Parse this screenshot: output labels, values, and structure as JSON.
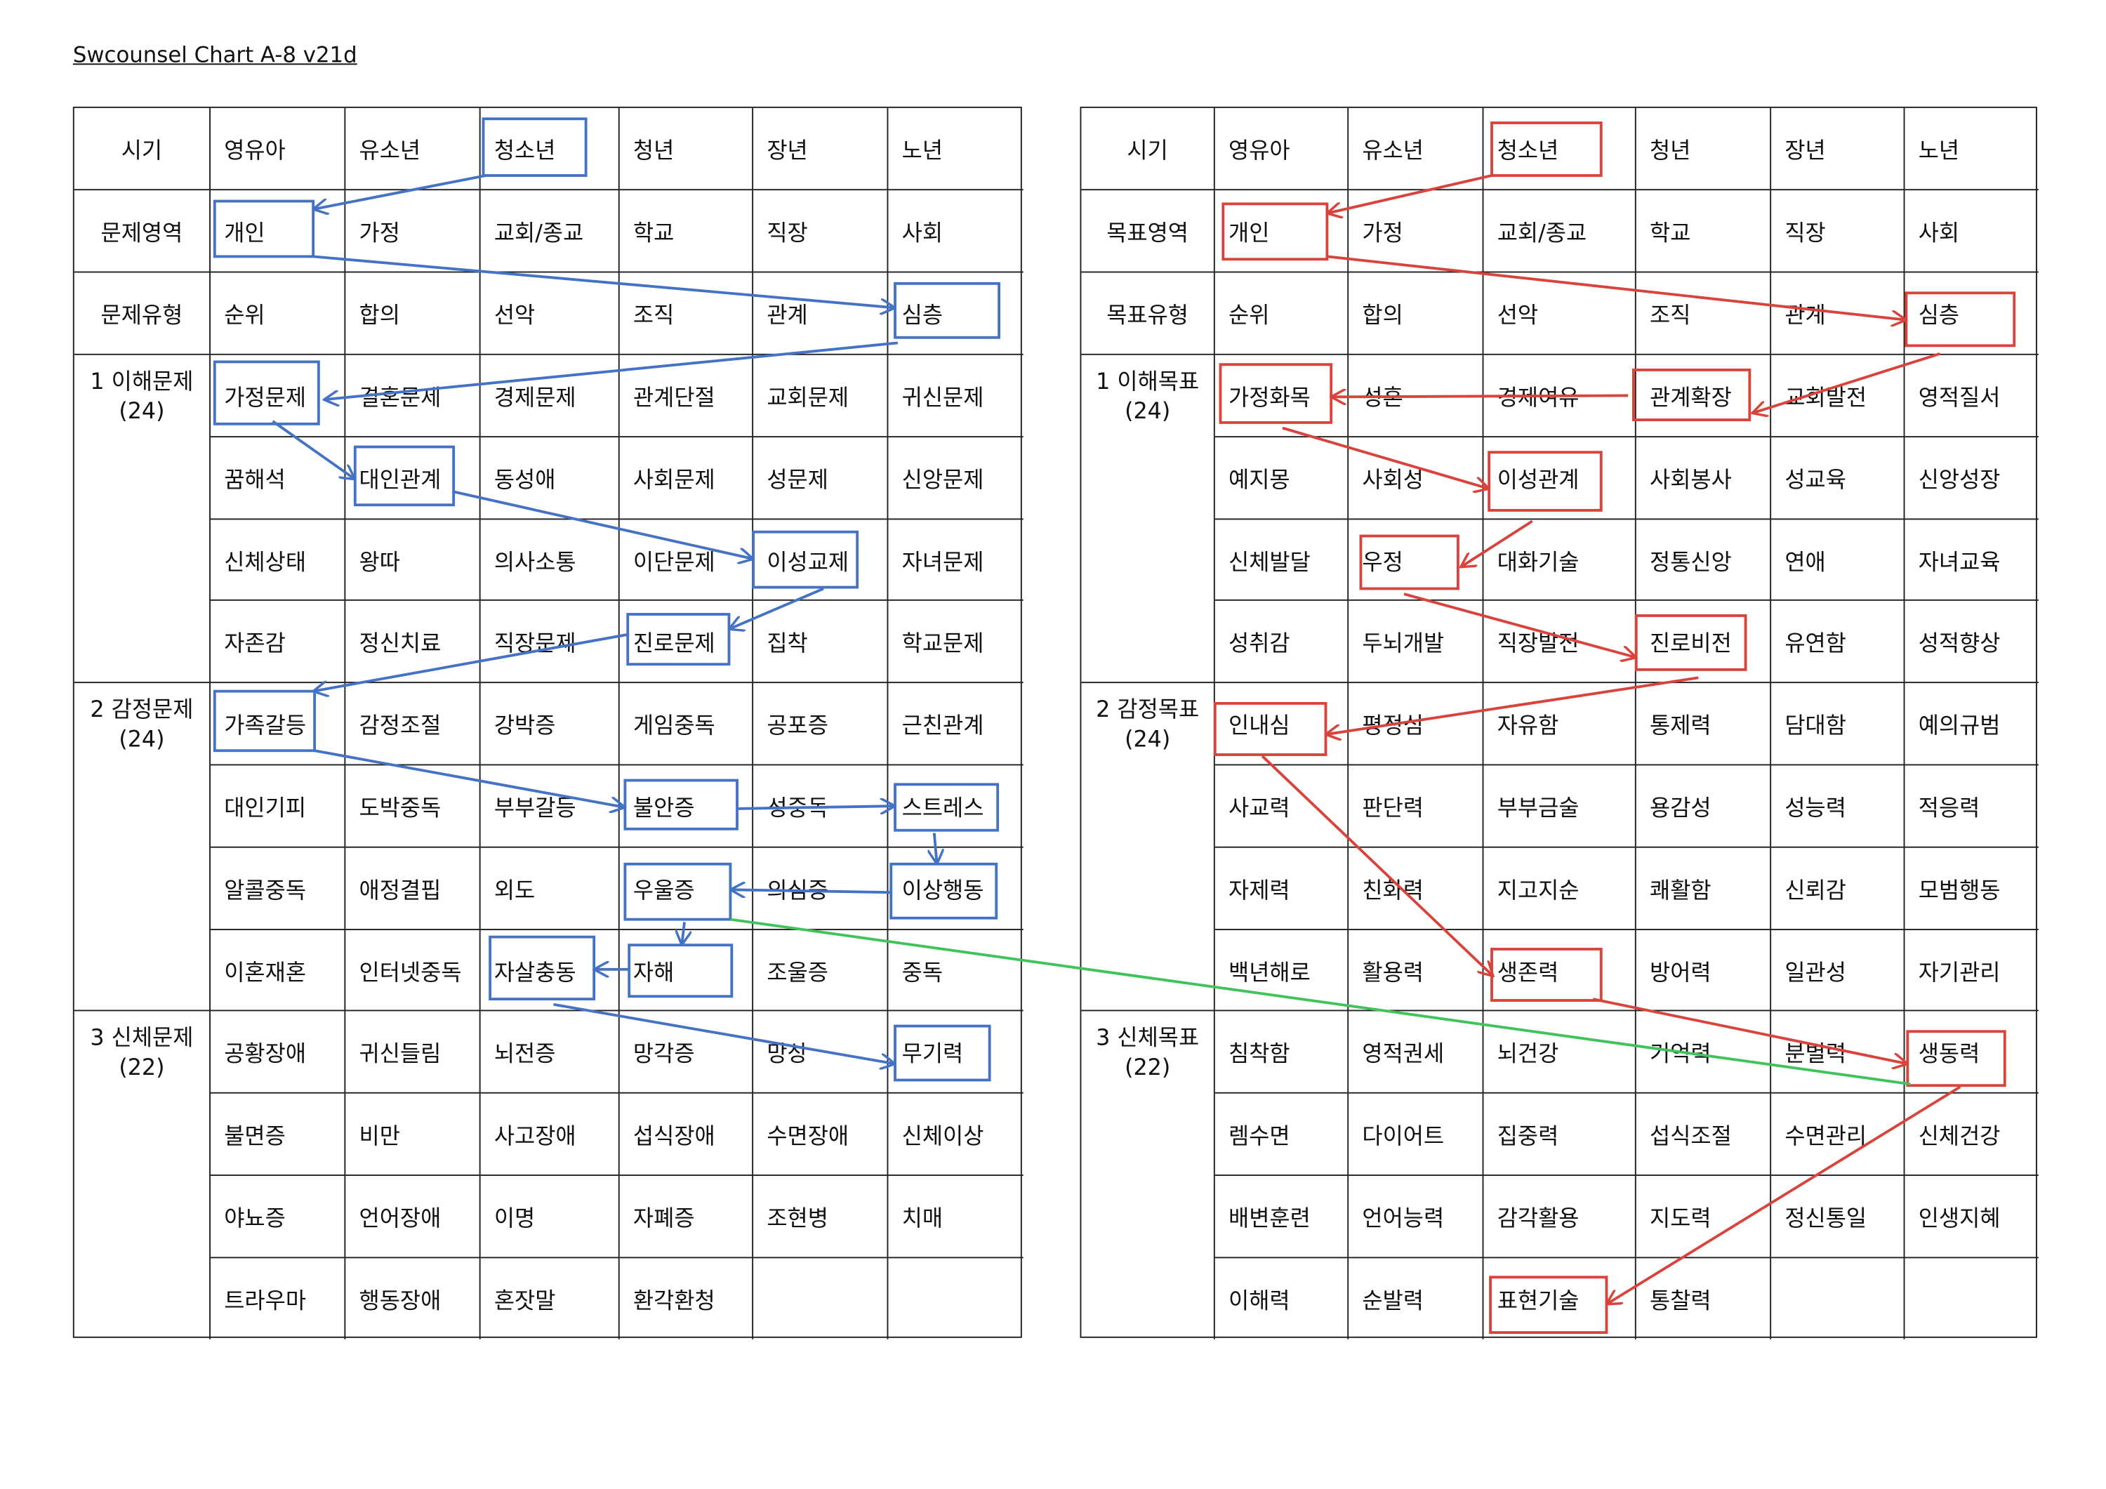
{
  "title": "Swcounsel Chart A-8 v21d",
  "colors": {
    "left_accent": "#4472c4",
    "right_accent": "#d9433b",
    "link": "#3fc35a",
    "grid": "#222222"
  },
  "left_table": {
    "header": [
      "시기",
      "영유아",
      "유소년",
      "청소년",
      "청년",
      "장년",
      "노년"
    ],
    "area": {
      "label": "문제영역",
      "cells": [
        "개인",
        "가정",
        "교회/종교",
        "학교",
        "직장",
        "사회"
      ]
    },
    "type": {
      "label": "문제유형",
      "cells": [
        "순위",
        "합의",
        "선악",
        "조직",
        "관계",
        "심층"
      ]
    },
    "groups": [
      {
        "label": "1 이해문제",
        "count": "(24)",
        "rows": [
          [
            "가정문제",
            "결혼문제",
            "경제문제",
            "관계단절",
            "교회문제",
            "귀신문제"
          ],
          [
            "꿈해석",
            "대인관계",
            "동성애",
            "사회문제",
            "성문제",
            "신앙문제"
          ],
          [
            "신체상태",
            "왕따",
            "의사소통",
            "이단문제",
            "이성교제",
            "자녀문제"
          ],
          [
            "자존감",
            "정신치료",
            "직장문제",
            "진로문제",
            "집착",
            "학교문제"
          ]
        ]
      },
      {
        "label": "2 감정문제",
        "count": "(24)",
        "rows": [
          [
            "가족갈등",
            "감정조절",
            "강박증",
            "게임중독",
            "공포증",
            "근친관계"
          ],
          [
            "대인기피",
            "도박중독",
            "부부갈등",
            "불안증",
            "성중독",
            "스트레스"
          ],
          [
            "알콜중독",
            "애정결핍",
            "외도",
            "우울증",
            "의심증",
            "이상행동"
          ],
          [
            "이혼재혼",
            "인터넷중독",
            "자살충동",
            "자해",
            "조울증",
            "중독"
          ]
        ]
      },
      {
        "label": "3 신체문제",
        "count": "(22)",
        "rows": [
          [
            "공황장애",
            "귀신들림",
            "뇌전증",
            "망각증",
            "망상",
            "무기력"
          ],
          [
            "불면증",
            "비만",
            "사고장애",
            "섭식장애",
            "수면장애",
            "신체이상"
          ],
          [
            "야뇨증",
            "언어장애",
            "이명",
            "자폐증",
            "조현병",
            "치매"
          ],
          [
            "트라우마",
            "행동장애",
            "혼잣말",
            "환각환청",
            "",
            ""
          ]
        ]
      }
    ],
    "highlighted_path": [
      "청소년",
      "개인",
      "심층",
      "가정문제",
      "대인관계",
      "이성교제",
      "진로문제",
      "가족갈등",
      "불안증",
      "스트레스",
      "이상행동",
      "우울증",
      "자해",
      "자살충동",
      "무기력"
    ]
  },
  "right_table": {
    "header": [
      "시기",
      "영유아",
      "유소년",
      "청소년",
      "청년",
      "장년",
      "노년"
    ],
    "area": {
      "label": "목표영역",
      "cells": [
        "개인",
        "가정",
        "교회/종교",
        "학교",
        "직장",
        "사회"
      ]
    },
    "type": {
      "label": "목표유형",
      "cells": [
        "순위",
        "합의",
        "선악",
        "조직",
        "관계",
        "심층"
      ]
    },
    "groups": [
      {
        "label": "1 이해목표",
        "count": "(24)",
        "rows": [
          [
            "가정화목",
            "성혼",
            "경제여유",
            "관계확장",
            "교회발전",
            "영적질서"
          ],
          [
            "예지몽",
            "사회성",
            "이성관계",
            "사회봉사",
            "성교육",
            "신앙성장"
          ],
          [
            "신체발달",
            "우정",
            "대화기술",
            "정통신앙",
            "연애",
            "자녀교육"
          ],
          [
            "성취감",
            "두뇌개발",
            "직장발전",
            "진로비전",
            "유연함",
            "성적향상"
          ]
        ]
      },
      {
        "label": "2 감정목표",
        "count": "(24)",
        "rows": [
          [
            "인내심",
            "평정심",
            "자유함",
            "통제력",
            "담대함",
            "예의규범"
          ],
          [
            "사교력",
            "판단력",
            "부부금술",
            "용감성",
            "성능력",
            "적응력"
          ],
          [
            "자제력",
            "친화력",
            "지고지순",
            "쾌활함",
            "신뢰감",
            "모범행동"
          ],
          [
            "백년해로",
            "활용력",
            "생존력",
            "방어력",
            "일관성",
            "자기관리"
          ]
        ]
      },
      {
        "label": "3 신체목표",
        "count": "(22)",
        "rows": [
          [
            "침착함",
            "영적권세",
            "뇌건강",
            "기억력",
            "분별력",
            "생동력"
          ],
          [
            "렘수면",
            "다이어트",
            "집중력",
            "섭식조절",
            "수면관리",
            "신체건강"
          ],
          [
            "배변훈련",
            "언어능력",
            "감각활용",
            "지도력",
            "정신통일",
            "인생지혜"
          ],
          [
            "이해력",
            "순발력",
            "표현기술",
            "통찰력",
            "",
            ""
          ]
        ]
      }
    ],
    "highlighted_path": [
      "청소년",
      "개인",
      "심층",
      "관계확장",
      "가정화목",
      "이성관계",
      "우정",
      "진로비전",
      "인내심",
      "생존력",
      "생동력",
      "표현기술"
    ]
  },
  "cross_link": {
    "from": "우울증",
    "to": "생동력"
  }
}
